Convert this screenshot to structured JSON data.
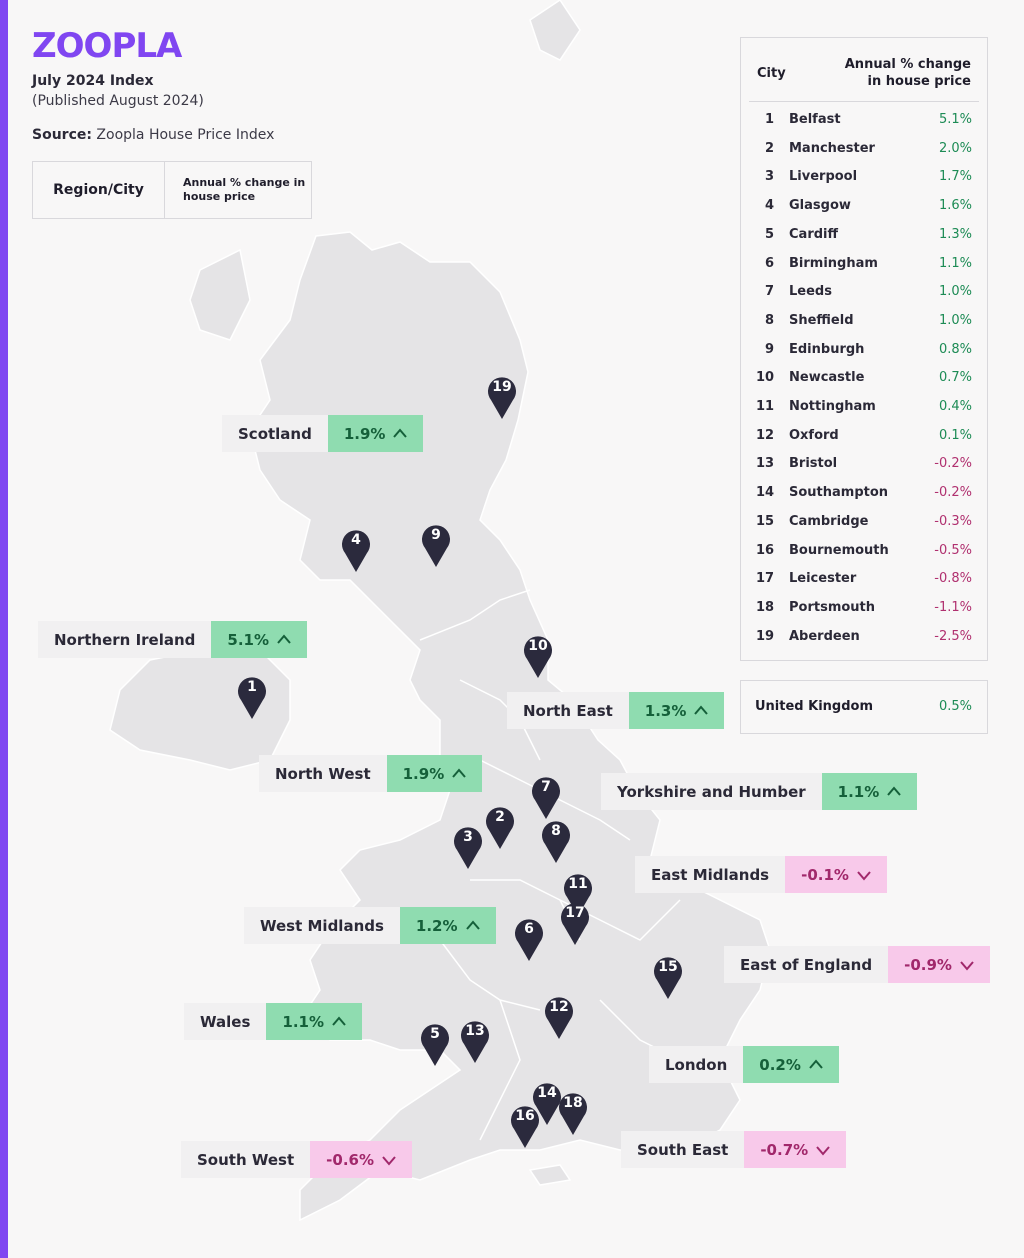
{
  "brand": {
    "logo": "ZOOPLA",
    "color": "#8046f1"
  },
  "header": {
    "index_title": "July 2024 Index",
    "published": "(Published August 2024)",
    "source_label": "Source:",
    "source_value": "Zoopla House Price Index"
  },
  "legend": {
    "col1": "Region/City",
    "col2": "Annual % change in house price"
  },
  "colors": {
    "up_bg": "#8fdcb0",
    "down_bg": "#f8c9ea",
    "up_text": "#15603a",
    "down_text": "#a1286b",
    "pin": "#2b2a3d",
    "land": "#e5e4e6"
  },
  "regions": [
    {
      "name": "Scotland",
      "value": "1.9%",
      "dir": "up"
    },
    {
      "name": "Northern Ireland",
      "value": "5.1%",
      "dir": "up"
    },
    {
      "name": "North East",
      "value": "1.3%",
      "dir": "up"
    },
    {
      "name": "North West",
      "value": "1.9%",
      "dir": "up"
    },
    {
      "name": "Yorkshire and Humber",
      "value": "1.1%",
      "dir": "up"
    },
    {
      "name": "East Midlands",
      "value": "-0.1%",
      "dir": "down"
    },
    {
      "name": "West Midlands",
      "value": "1.2%",
      "dir": "up"
    },
    {
      "name": "East of England",
      "value": "-0.9%",
      "dir": "down"
    },
    {
      "name": "Wales",
      "value": "1.1%",
      "dir": "up"
    },
    {
      "name": "London",
      "value": "0.2%",
      "dir": "up"
    },
    {
      "name": "South West",
      "value": "-0.6%",
      "dir": "down"
    },
    {
      "name": "South East",
      "value": "-0.7%",
      "dir": "down"
    }
  ],
  "table": {
    "col_city": "City",
    "col_change": "Annual % change in house price",
    "rows": [
      {
        "rank": "1",
        "city": "Belfast",
        "value": "5.1%",
        "dir": "up"
      },
      {
        "rank": "2",
        "city": "Manchester",
        "value": "2.0%",
        "dir": "up"
      },
      {
        "rank": "3",
        "city": "Liverpool",
        "value": "1.7%",
        "dir": "up"
      },
      {
        "rank": "4",
        "city": "Glasgow",
        "value": "1.6%",
        "dir": "up"
      },
      {
        "rank": "5",
        "city": "Cardiff",
        "value": "1.3%",
        "dir": "up"
      },
      {
        "rank": "6",
        "city": "Birmingham",
        "value": "1.1%",
        "dir": "up"
      },
      {
        "rank": "7",
        "city": "Leeds",
        "value": "1.0%",
        "dir": "up"
      },
      {
        "rank": "8",
        "city": "Sheffield",
        "value": "1.0%",
        "dir": "up"
      },
      {
        "rank": "9",
        "city": "Edinburgh",
        "value": "0.8%",
        "dir": "up"
      },
      {
        "rank": "10",
        "city": "Newcastle",
        "value": "0.7%",
        "dir": "up"
      },
      {
        "rank": "11",
        "city": "Nottingham",
        "value": "0.4%",
        "dir": "up"
      },
      {
        "rank": "12",
        "city": "Oxford",
        "value": "0.1%",
        "dir": "up"
      },
      {
        "rank": "13",
        "city": "Bristol",
        "value": "-0.2%",
        "dir": "down"
      },
      {
        "rank": "14",
        "city": "Southampton",
        "value": "-0.2%",
        "dir": "down"
      },
      {
        "rank": "15",
        "city": "Cambridge",
        "value": "-0.3%",
        "dir": "down"
      },
      {
        "rank": "16",
        "city": "Bournemouth",
        "value": "-0.5%",
        "dir": "down"
      },
      {
        "rank": "17",
        "city": "Leicester",
        "value": "-0.8%",
        "dir": "down"
      },
      {
        "rank": "18",
        "city": "Portsmouth",
        "value": "-1.1%",
        "dir": "down"
      },
      {
        "rank": "19",
        "city": "Aberdeen",
        "value": "-2.5%",
        "dir": "down"
      }
    ]
  },
  "uk": {
    "name": "United Kingdom",
    "value": "0.5%",
    "dir": "up"
  },
  "pins": [
    "1",
    "2",
    "3",
    "4",
    "5",
    "6",
    "7",
    "8",
    "9",
    "10",
    "11",
    "12",
    "13",
    "14",
    "15",
    "16",
    "17",
    "18",
    "19"
  ]
}
